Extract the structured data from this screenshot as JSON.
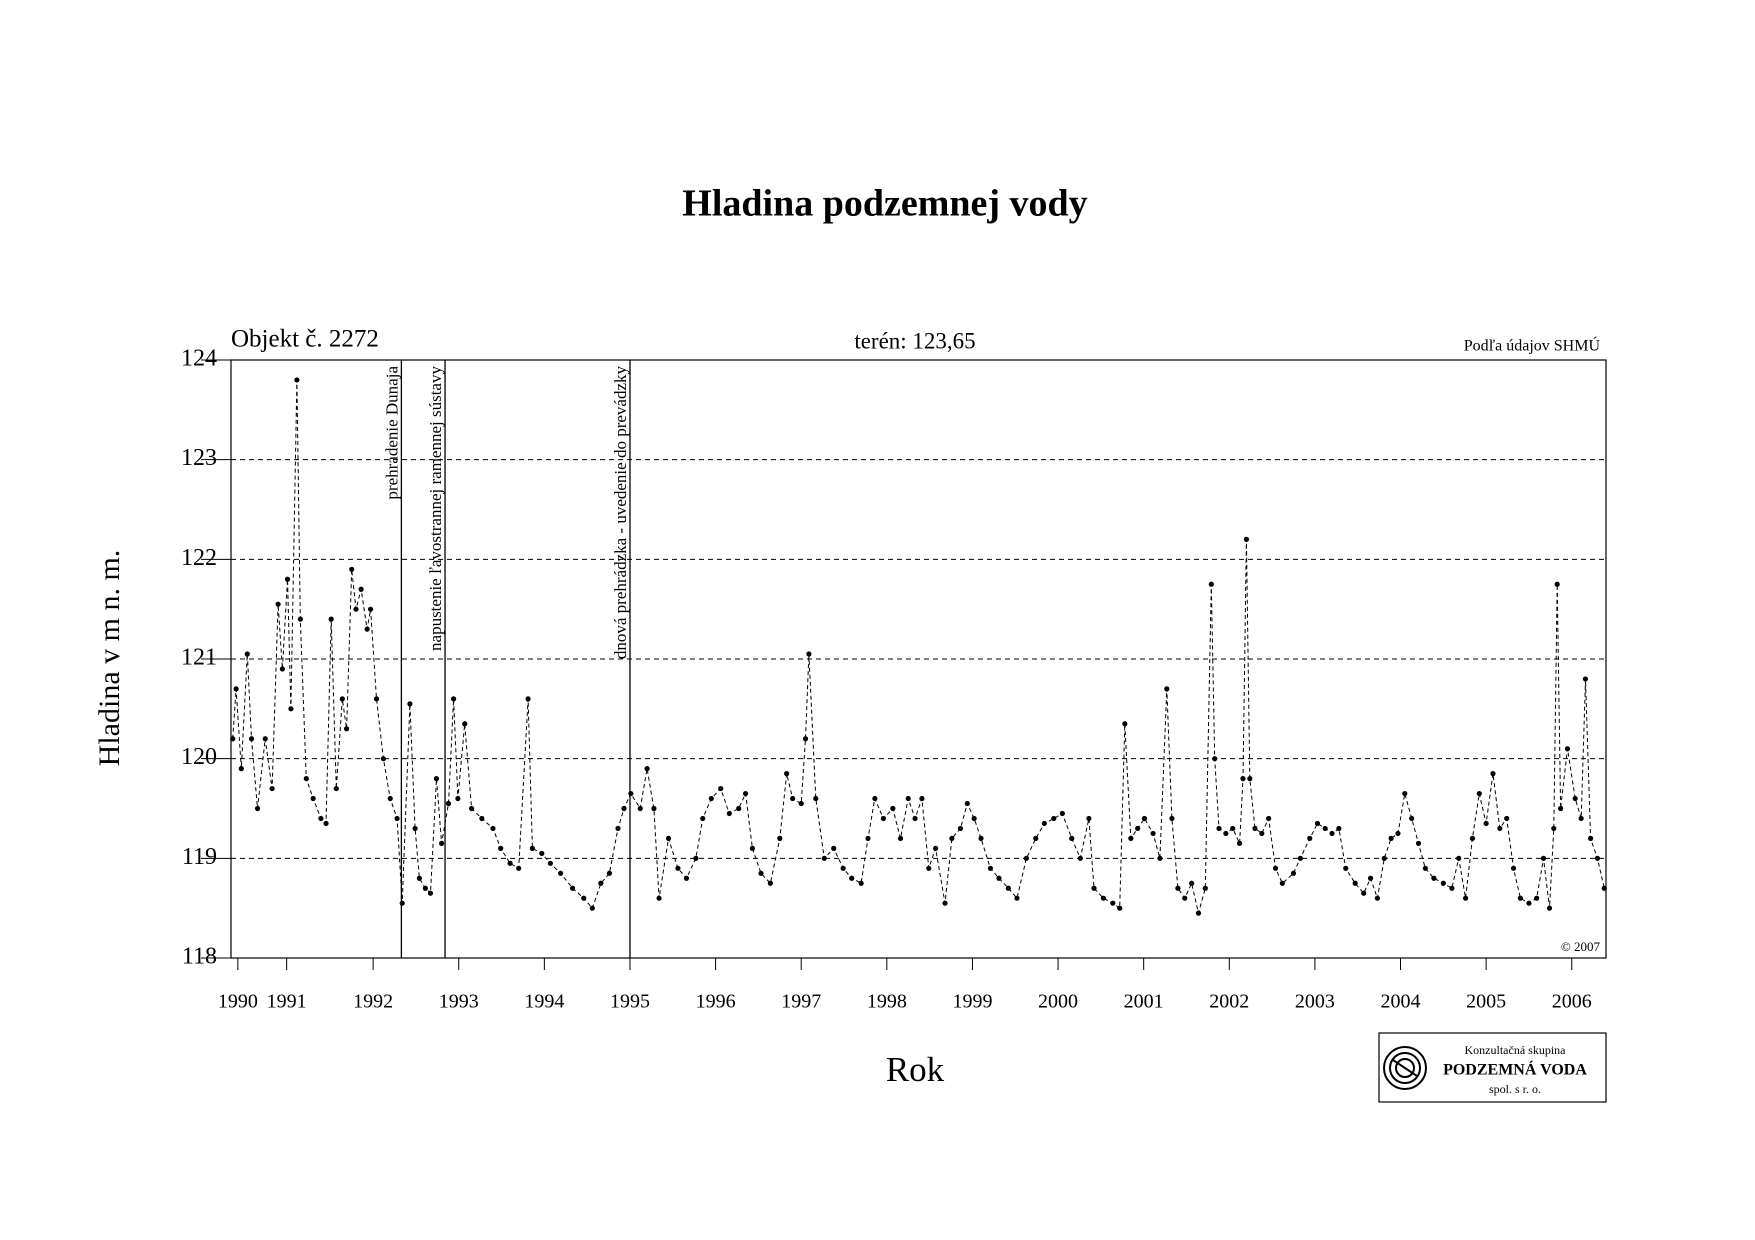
{
  "chart_data": {
    "type": "line",
    "title": "Hladina podzemnej vody",
    "object_label": "Objekt č. 2272",
    "terrain_label": "terén: 123,65",
    "source_label": "Podľa údajov SHMÚ",
    "copyright": "© 2007",
    "xlabel": "Rok",
    "ylabel": "Hladina v m n. m.",
    "logo": {
      "line1": "Konzultačná skupina",
      "line2": "PODZEMNÁ VODA",
      "line3": "spol. s r. o."
    },
    "xlim": [
      1990.84,
      2006.9
    ],
    "ylim": [
      118,
      124
    ],
    "yticks": [
      118,
      119,
      120,
      121,
      122,
      123,
      124
    ],
    "xticks": [
      {
        "value": 1990.92,
        "label": "1990"
      },
      {
        "value": 1991.49,
        "label": "1991"
      },
      {
        "value": 1992.5,
        "label": "1992"
      },
      {
        "value": 1993.5,
        "label": "1993"
      },
      {
        "value": 1994.5,
        "label": "1994"
      },
      {
        "value": 1995.5,
        "label": "1995"
      },
      {
        "value": 1996.5,
        "label": "1996"
      },
      {
        "value": 1997.5,
        "label": "1997"
      },
      {
        "value": 1998.5,
        "label": "1998"
      },
      {
        "value": 1999.5,
        "label": "1999"
      },
      {
        "value": 2000.5,
        "label": "2000"
      },
      {
        "value": 2001.5,
        "label": "2001"
      },
      {
        "value": 2002.5,
        "label": "2002"
      },
      {
        "value": 2003.5,
        "label": "2003"
      },
      {
        "value": 2004.5,
        "label": "2004"
      },
      {
        "value": 2005.5,
        "label": "2005"
      },
      {
        "value": 2006.5,
        "label": "2006"
      }
    ],
    "grid": true,
    "annotations": [
      {
        "x": 1992.83,
        "text": "prehradenie Dunaja"
      },
      {
        "x": 1993.34,
        "text": "napustenie ľavostrannej ramennej sústavy"
      },
      {
        "x": 1995.5,
        "text": "dnová prehrádzka - uvedenie do prevádzky"
      }
    ],
    "series": [
      {
        "color": "#000000",
        "x": [
          1990.86,
          1990.9,
          1990.96,
          1991.03,
          1991.08,
          1991.15,
          1991.24,
          1991.32,
          1991.39,
          1991.44,
          1991.5,
          1991.54,
          1991.61,
          1991.65,
          1991.72,
          1991.8,
          1991.89,
          1991.95,
          1992.01,
          1992.07,
          1992.14,
          1992.19,
          1992.25,
          1992.3,
          1992.36,
          1992.43,
          1992.47,
          1992.54,
          1992.62,
          1992.7,
          1992.78,
          1992.84,
          1992.93,
          1992.99,
          1993.04,
          1993.11,
          1993.17,
          1993.24,
          1993.3,
          1993.38,
          1993.44,
          1993.49,
          1993.57,
          1993.65,
          1993.77,
          1993.9,
          1993.99,
          1994.1,
          1994.2,
          1994.31,
          1994.36,
          1994.47,
          1994.57,
          1994.69,
          1994.83,
          1994.96,
          1995.06,
          1995.16,
          1995.26,
          1995.36,
          1995.43,
          1995.51,
          1995.62,
          1995.7,
          1995.78,
          1995.84,
          1995.95,
          1996.06,
          1996.16,
          1996.27,
          1996.35,
          1996.45,
          1996.56,
          1996.66,
          1996.77,
          1996.85,
          1996.93,
          1997.03,
          1997.14,
          1997.25,
          1997.33,
          1997.4,
          1997.5,
          1997.55,
          1997.59,
          1997.67,
          1997.77,
          1997.88,
          1997.99,
          1998.09,
          1998.2,
          1998.28,
          1998.36,
          1998.46,
          1998.57,
          1998.66,
          1998.75,
          1998.83,
          1998.91,
          1998.99,
          1999.07,
          1999.18,
          1999.26,
          1999.36,
          1999.44,
          1999.52,
          1999.6,
          1999.71,
          1999.81,
          1999.92,
          2000.02,
          2000.13,
          2000.24,
          2000.34,
          2000.45,
          2000.55,
          2000.66,
          2000.76,
          2000.86,
          2000.92,
          2001.03,
          2001.14,
          2001.22,
          2001.28,
          2001.35,
          2001.43,
          2001.51,
          2001.61,
          2001.69,
          2001.77,
          2001.83,
          2001.9,
          2001.98,
          2002.06,
          2002.14,
          2002.22,
          2002.29,
          2002.33,
          2002.38,
          2002.46,
          2002.54,
          2002.62,
          2002.66,
          2002.7,
          2002.74,
          2002.8,
          2002.88,
          2002.96,
          2003.04,
          2003.12,
          2003.25,
          2003.33,
          2003.44,
          2003.53,
          2003.62,
          2003.7,
          2003.78,
          2003.86,
          2003.97,
          2004.07,
          2004.15,
          2004.23,
          2004.31,
          2004.39,
          2004.47,
          2004.55,
          2004.63,
          2004.71,
          2004.79,
          2004.89,
          2005.0,
          2005.1,
          2005.18,
          2005.26,
          2005.34,
          2005.42,
          2005.5,
          2005.58,
          2005.66,
          2005.74,
          2005.82,
          2005.9,
          2006.0,
          2006.09,
          2006.17,
          2006.24,
          2006.29,
          2006.33,
          2006.37,
          2006.45,
          2006.54,
          2006.61,
          2006.66,
          2006.72,
          2006.8,
          2006.88
        ],
        "values": [
          120.2,
          120.7,
          119.9,
          121.05,
          120.2,
          119.5,
          120.2,
          119.7,
          121.55,
          120.9,
          121.8,
          120.5,
          123.8,
          121.4,
          119.8,
          119.6,
          119.4,
          119.35,
          121.4,
          119.7,
          120.6,
          120.3,
          121.9,
          121.5,
          121.7,
          121.3,
          121.5,
          120.6,
          120.0,
          119.6,
          119.4,
          118.55,
          120.55,
          119.3,
          118.8,
          118.7,
          118.65,
          119.8,
          119.15,
          119.55,
          120.6,
          119.6,
          120.35,
          119.5,
          119.4,
          119.3,
          119.1,
          118.95,
          118.9,
          120.6,
          119.1,
          119.05,
          118.95,
          118.85,
          118.7,
          118.6,
          118.5,
          118.75,
          118.85,
          119.3,
          119.5,
          119.65,
          119.5,
          119.9,
          119.5,
          118.6,
          119.2,
          118.9,
          118.8,
          119.0,
          119.4,
          119.6,
          119.7,
          119.45,
          119.5,
          119.65,
          119.1,
          118.85,
          118.75,
          119.2,
          119.85,
          119.6,
          119.55,
          120.2,
          121.05,
          119.6,
          119.0,
          119.1,
          118.9,
          118.8,
          118.75,
          119.2,
          119.6,
          119.4,
          119.5,
          119.2,
          119.6,
          119.4,
          119.6,
          118.9,
          119.1,
          118.55,
          119.2,
          119.3,
          119.55,
          119.4,
          119.2,
          118.9,
          118.8,
          118.7,
          118.6,
          119.0,
          119.2,
          119.35,
          119.4,
          119.45,
          119.2,
          119.0,
          119.4,
          118.7,
          118.6,
          118.55,
          118.5,
          120.35,
          119.2,
          119.3,
          119.4,
          119.25,
          119.0,
          120.7,
          119.4,
          118.7,
          118.6,
          118.75,
          118.45,
          118.7,
          121.75,
          120.0,
          119.3,
          119.25,
          119.3,
          119.15,
          119.8,
          122.2,
          119.8,
          119.3,
          119.25,
          119.4,
          118.9,
          118.75,
          118.85,
          119.0,
          119.2,
          119.35,
          119.3,
          119.25,
          119.3,
          118.9,
          118.75,
          118.65,
          118.8,
          118.6,
          119.0,
          119.2,
          119.25,
          119.65,
          119.4,
          119.15,
          118.9,
          118.8,
          118.75,
          118.7,
          119.0,
          118.6,
          119.2,
          119.65,
          119.35,
          119.85,
          119.3,
          119.4,
          118.9,
          118.6,
          118.55,
          118.6,
          119.0,
          118.5,
          119.3,
          121.75,
          119.5,
          120.1,
          119.6,
          119.4,
          120.8,
          119.2,
          119.0,
          118.7
        ]
      }
    ]
  }
}
